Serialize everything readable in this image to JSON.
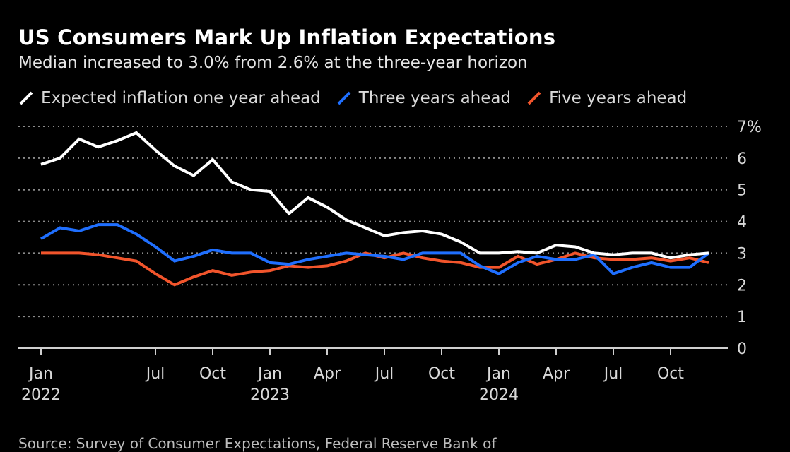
{
  "title": "US Consumers Mark Up Inflation Expectations",
  "subtitle": "Median increased to 3.0% from 2.6% at the three-year horizon",
  "source": "Source: Survey of Consumer Expectations, Federal Reserve Bank of",
  "colors": {
    "background": "#000000",
    "one_year": "#ffffff",
    "three_year": "#1f6fff",
    "five_year": "#f2552c",
    "grid": "#8a8a8a",
    "text": "#d9d9d9"
  },
  "chart_data": {
    "type": "line",
    "x": [
      "2022-01",
      "2022-02",
      "2022-03",
      "2022-04",
      "2022-05",
      "2022-06",
      "2022-07",
      "2022-08",
      "2022-09",
      "2022-10",
      "2022-11",
      "2022-12",
      "2023-01",
      "2023-02",
      "2023-03",
      "2023-04",
      "2023-05",
      "2023-06",
      "2023-07",
      "2023-08",
      "2023-09",
      "2023-10",
      "2023-11",
      "2023-12",
      "2024-01",
      "2024-02",
      "2024-03",
      "2024-04",
      "2024-05",
      "2024-06",
      "2024-07",
      "2024-08",
      "2024-09",
      "2024-10",
      "2024-11",
      "2024-12"
    ],
    "series": [
      {
        "name": "Expected inflation one year ahead",
        "color": "#ffffff",
        "values": [
          5.8,
          6.0,
          6.6,
          6.35,
          6.55,
          6.8,
          6.25,
          5.75,
          5.45,
          5.95,
          5.25,
          5.0,
          4.95,
          4.25,
          4.75,
          4.45,
          4.05,
          3.8,
          3.55,
          3.65,
          3.7,
          3.6,
          3.35,
          3.0,
          3.0,
          3.05,
          3.0,
          3.25,
          3.2,
          3.0,
          2.95,
          3.0,
          3.0,
          2.85,
          2.95,
          3.0
        ]
      },
      {
        "name": "Three years ahead",
        "color": "#1f6fff",
        "values": [
          3.45,
          3.8,
          3.7,
          3.9,
          3.9,
          3.6,
          3.2,
          2.75,
          2.9,
          3.1,
          3.0,
          3.0,
          2.7,
          2.65,
          2.8,
          2.9,
          3.0,
          2.95,
          2.9,
          2.8,
          3.0,
          3.0,
          3.0,
          2.6,
          2.35,
          2.7,
          2.9,
          2.8,
          2.8,
          2.95,
          2.35,
          2.55,
          2.7,
          2.55,
          2.55,
          3.0
        ]
      },
      {
        "name": "Five years ahead",
        "color": "#f2552c",
        "values": [
          3.0,
          3.0,
          3.0,
          2.95,
          2.85,
          2.75,
          2.35,
          2.0,
          2.25,
          2.45,
          2.3,
          2.4,
          2.45,
          2.6,
          2.55,
          2.6,
          2.75,
          3.0,
          2.85,
          3.0,
          2.85,
          2.75,
          2.7,
          2.55,
          2.55,
          2.9,
          2.65,
          2.8,
          3.0,
          2.85,
          2.8,
          2.8,
          2.85,
          2.75,
          2.85,
          2.7
        ]
      }
    ],
    "xticks": [
      {
        "x": "2022-01",
        "label": "Jan",
        "year": "2022"
      },
      {
        "x": "2022-07",
        "label": "Jul",
        "year": ""
      },
      {
        "x": "2022-10",
        "label": "Oct",
        "year": ""
      },
      {
        "x": "2023-01",
        "label": "Jan",
        "year": "2023"
      },
      {
        "x": "2023-04",
        "label": "Apr",
        "year": ""
      },
      {
        "x": "2023-07",
        "label": "Jul",
        "year": ""
      },
      {
        "x": "2023-10",
        "label": "Oct",
        "year": ""
      },
      {
        "x": "2024-01",
        "label": "Jan",
        "year": "2024"
      },
      {
        "x": "2024-04",
        "label": "Apr",
        "year": ""
      },
      {
        "x": "2024-07",
        "label": "Jul",
        "year": ""
      },
      {
        "x": "2024-10",
        "label": "Oct",
        "year": ""
      }
    ],
    "yticks": [
      {
        "value": 0,
        "label": "0"
      },
      {
        "value": 1,
        "label": "1"
      },
      {
        "value": 2,
        "label": "2"
      },
      {
        "value": 3,
        "label": "3"
      },
      {
        "value": 4,
        "label": "4"
      },
      {
        "value": 5,
        "label": "5"
      },
      {
        "value": 6,
        "label": "6"
      },
      {
        "value": 7,
        "label": "7%"
      }
    ],
    "ylim": [
      0,
      7
    ],
    "grid": true,
    "legend_position": "top-left"
  }
}
